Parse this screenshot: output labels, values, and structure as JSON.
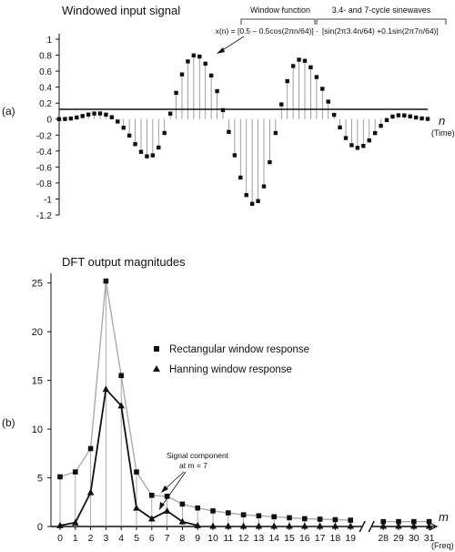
{
  "chart_data": [
    {
      "type": "scatter",
      "panel_label": "(a)",
      "title": "Windowed input signal",
      "xlabel": "n",
      "xlabel_sub": "(Time)",
      "ylim": [
        -1.2,
        1.0
      ],
      "yticks": [
        "1",
        "0.8",
        "0.6",
        "0.4",
        "0.2",
        "0",
        "-0.2",
        "-0.4",
        "-0.6",
        "-0.8",
        "-1",
        "-1.2"
      ],
      "ytick_values": [
        1,
        0.8,
        0.6,
        0.4,
        0.2,
        0,
        -0.2,
        -0.4,
        -0.6,
        -0.8,
        -1,
        -1.2
      ],
      "x_range": [
        0,
        63
      ],
      "annotation_window": "Window function",
      "annotation_sines": "3.4- and 7-cycle sinewaves",
      "formula_left": "x(n) = [0.5 – 0.5cos(2πn/64)] ·",
      "formula_right": "[sin(2π3.4n/64) +0.1sin(2π7n/64)]",
      "signal": {
        "window_cycles": 64,
        "sine1_cycles": 3.4,
        "sine2_cycles": 7,
        "sine2_amplitude": 0.1
      }
    },
    {
      "type": "line",
      "panel_label": "(b)",
      "title": "DFT output magnitudes",
      "xlabel": "m",
      "xlabel_sub": "(Freq)",
      "ylim": [
        0,
        26
      ],
      "yticks": [
        "25",
        "20",
        "15",
        "10",
        "5",
        "0"
      ],
      "ytick_values": [
        25,
        20,
        15,
        10,
        5,
        0
      ],
      "categories": [
        "0",
        "1",
        "2",
        "3",
        "4",
        "5",
        "6",
        "7",
        "8",
        "9",
        "10",
        "11",
        "12",
        "13",
        "14",
        "15",
        "16",
        "17",
        "18",
        "19",
        "28",
        "29",
        "30",
        "31"
      ],
      "axis_break_after": "19",
      "annotation_text_1": "Signal component",
      "annotation_text_2": "at m = 7",
      "annotation_target": "7",
      "series": [
        {
          "name": "Rectangular window response",
          "marker": "square",
          "values": [
            5.1,
            5.6,
            8.0,
            25.2,
            15.5,
            5.6,
            3.2,
            3.1,
            2.3,
            1.9,
            1.6,
            1.4,
            1.2,
            1.1,
            1.0,
            0.9,
            0.8,
            0.75,
            0.7,
            0.65,
            0.5,
            0.5,
            0.5,
            0.5
          ]
        },
        {
          "name": "Hanning window response",
          "marker": "triangle",
          "values": [
            0.1,
            0.4,
            3.5,
            14.1,
            12.4,
            1.9,
            0.8,
            1.6,
            0.5,
            0.1,
            0.05,
            0.05,
            0.05,
            0.05,
            0.05,
            0.05,
            0.05,
            0.05,
            0.05,
            0.05,
            0.05,
            0.05,
            0.05,
            0.05
          ]
        }
      ]
    }
  ]
}
